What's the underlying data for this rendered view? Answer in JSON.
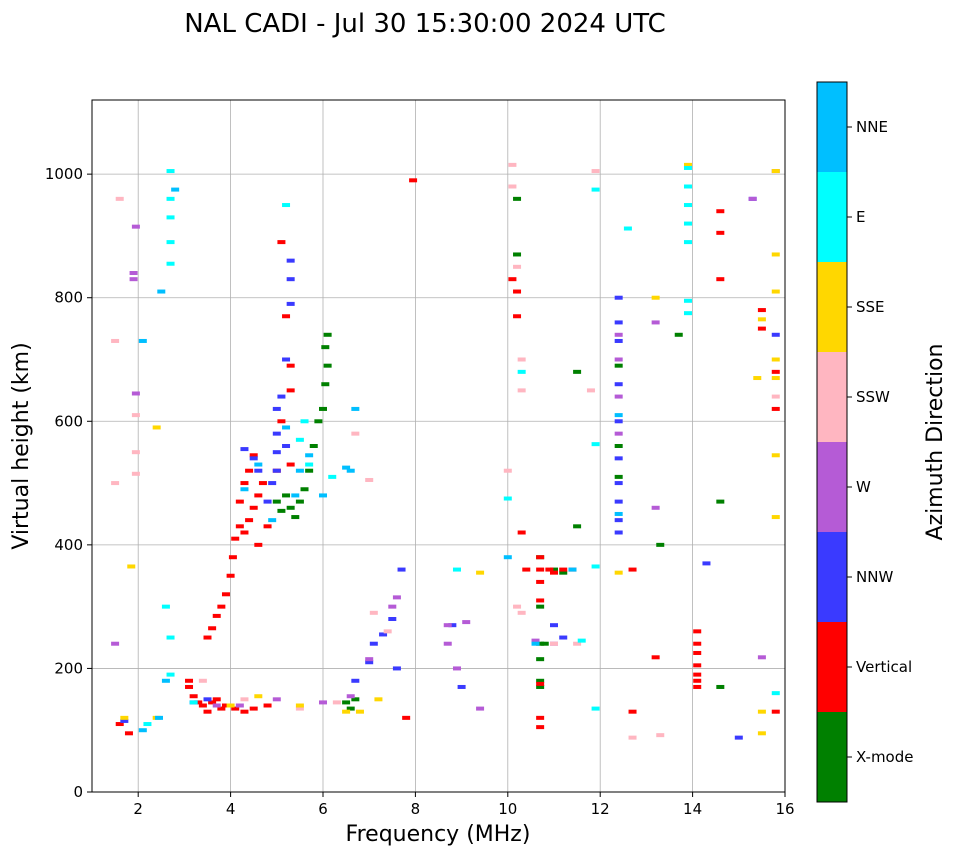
{
  "chart_data": {
    "type": "scatter",
    "title": "NAL CADI - Jul 30 15:30:00 2024 UTC",
    "xlabel": "Frequency (MHz)",
    "ylabel": "Virtual height (km)",
    "xlim": [
      1,
      16
    ],
    "ylim": [
      0,
      1120
    ],
    "xticks": [
      2,
      4,
      6,
      8,
      10,
      12,
      14,
      16
    ],
    "yticks": [
      0,
      200,
      400,
      600,
      800,
      1000
    ],
    "grid": true,
    "colorbar": {
      "title": "Azimuth Direction",
      "categories": [
        {
          "name": "X-mode",
          "color": "#008000"
        },
        {
          "name": "Vertical",
          "color": "#ff0000"
        },
        {
          "name": "NNW",
          "color": "#3a3aff"
        },
        {
          "name": "W",
          "color": "#b55bd6"
        },
        {
          "name": "SSW",
          "color": "#ffb6c1"
        },
        {
          "name": "SSE",
          "color": "#ffd700"
        },
        {
          "name": "E",
          "color": "#00ffff"
        },
        {
          "name": "NNE",
          "color": "#00bfff"
        }
      ]
    },
    "series": [
      {
        "name": "X-mode",
        "points": [
          [
            5.0,
            470
          ],
          [
            5.1,
            455
          ],
          [
            5.2,
            480
          ],
          [
            5.3,
            460
          ],
          [
            5.4,
            445
          ],
          [
            5.5,
            470
          ],
          [
            5.6,
            490
          ],
          [
            5.7,
            520
          ],
          [
            5.8,
            560
          ],
          [
            5.9,
            600
          ],
          [
            6.0,
            620
          ],
          [
            6.05,
            660
          ],
          [
            6.1,
            690
          ],
          [
            6.05,
            720
          ],
          [
            6.1,
            740
          ],
          [
            6.5,
            145
          ],
          [
            6.6,
            135
          ],
          [
            6.7,
            150
          ],
          [
            10.2,
            960
          ],
          [
            10.2,
            870
          ],
          [
            10.7,
            380
          ],
          [
            10.7,
            300
          ],
          [
            10.7,
            240
          ],
          [
            10.7,
            180
          ],
          [
            10.7,
            170
          ],
          [
            10.7,
            215
          ],
          [
            11.2,
            355
          ],
          [
            11.5,
            430
          ],
          [
            11.5,
            680
          ],
          [
            12.4,
            690
          ],
          [
            12.4,
            560
          ],
          [
            12.4,
            510
          ],
          [
            13.3,
            400
          ],
          [
            13.7,
            740
          ],
          [
            14.6,
            470
          ],
          [
            14.6,
            170
          ],
          [
            10.8,
            240
          ],
          [
            11.0,
            360
          ]
        ]
      },
      {
        "name": "Vertical",
        "points": [
          [
            1.6,
            110
          ],
          [
            1.8,
            95
          ],
          [
            3.1,
            180
          ],
          [
            3.1,
            170
          ],
          [
            3.2,
            155
          ],
          [
            3.3,
            145
          ],
          [
            3.4,
            140
          ],
          [
            3.5,
            130
          ],
          [
            3.6,
            145
          ],
          [
            3.7,
            150
          ],
          [
            3.8,
            135
          ],
          [
            3.9,
            140
          ],
          [
            4.1,
            135
          ],
          [
            4.3,
            130
          ],
          [
            4.5,
            135
          ],
          [
            4.8,
            140
          ],
          [
            3.5,
            250
          ],
          [
            3.6,
            265
          ],
          [
            3.7,
            285
          ],
          [
            3.8,
            300
          ],
          [
            3.9,
            320
          ],
          [
            4.0,
            350
          ],
          [
            4.05,
            380
          ],
          [
            4.1,
            410
          ],
          [
            4.2,
            430
          ],
          [
            4.3,
            420
          ],
          [
            4.4,
            440
          ],
          [
            4.5,
            460
          ],
          [
            4.6,
            480
          ],
          [
            4.7,
            500
          ],
          [
            4.4,
            520
          ],
          [
            4.5,
            545
          ],
          [
            4.2,
            470
          ],
          [
            4.3,
            500
          ],
          [
            4.6,
            400
          ],
          [
            4.8,
            430
          ],
          [
            5.0,
            520
          ],
          [
            5.1,
            600
          ],
          [
            5.1,
            890
          ],
          [
            5.2,
            770
          ],
          [
            5.3,
            690
          ],
          [
            5.3,
            650
          ],
          [
            5.3,
            530
          ],
          [
            7.8,
            120
          ],
          [
            7.95,
            990
          ],
          [
            10.1,
            830
          ],
          [
            10.2,
            810
          ],
          [
            10.2,
            770
          ],
          [
            10.3,
            420
          ],
          [
            10.4,
            360
          ],
          [
            10.7,
            380
          ],
          [
            10.7,
            360
          ],
          [
            10.7,
            340
          ],
          [
            10.7,
            310
          ],
          [
            10.7,
            175
          ],
          [
            10.7,
            120
          ],
          [
            10.7,
            105
          ],
          [
            10.9,
            360
          ],
          [
            11.0,
            355
          ],
          [
            11.2,
            360
          ],
          [
            11.4,
            360
          ],
          [
            12.7,
            360
          ],
          [
            12.7,
            130
          ],
          [
            13.2,
            218
          ],
          [
            14.1,
            260
          ],
          [
            14.1,
            240
          ],
          [
            14.1,
            225
          ],
          [
            14.1,
            205
          ],
          [
            14.1,
            190
          ],
          [
            14.1,
            180
          ],
          [
            14.1,
            170
          ],
          [
            14.6,
            940
          ],
          [
            14.6,
            905
          ],
          [
            14.6,
            830
          ],
          [
            15.5,
            780
          ],
          [
            15.5,
            750
          ],
          [
            15.8,
            680
          ],
          [
            15.8,
            620
          ],
          [
            15.8,
            130
          ]
        ]
      },
      {
        "name": "NNW",
        "points": [
          [
            1.7,
            115
          ],
          [
            3.2,
            145
          ],
          [
            3.5,
            150
          ],
          [
            4.3,
            555
          ],
          [
            4.5,
            540
          ],
          [
            4.6,
            520
          ],
          [
            4.8,
            470
          ],
          [
            4.9,
            500
          ],
          [
            5.0,
            550
          ],
          [
            5.0,
            580
          ],
          [
            5.0,
            620
          ],
          [
            5.1,
            640
          ],
          [
            5.2,
            700
          ],
          [
            5.0,
            520
          ],
          [
            5.2,
            560
          ],
          [
            5.3,
            860
          ],
          [
            5.3,
            830
          ],
          [
            5.3,
            790
          ],
          [
            6.7,
            180
          ],
          [
            7.0,
            210
          ],
          [
            7.1,
            240
          ],
          [
            7.3,
            255
          ],
          [
            7.5,
            280
          ],
          [
            7.6,
            200
          ],
          [
            7.7,
            360
          ],
          [
            8.8,
            270
          ],
          [
            9.0,
            170
          ],
          [
            11.0,
            270
          ],
          [
            11.2,
            250
          ],
          [
            12.4,
            800
          ],
          [
            12.4,
            760
          ],
          [
            12.4,
            730
          ],
          [
            12.4,
            660
          ],
          [
            12.4,
            600
          ],
          [
            12.4,
            540
          ],
          [
            12.4,
            500
          ],
          [
            12.4,
            470
          ],
          [
            12.4,
            440
          ],
          [
            12.4,
            420
          ],
          [
            14.3,
            370
          ],
          [
            15.0,
            88
          ],
          [
            15.3,
            960
          ],
          [
            15.8,
            740
          ]
        ]
      },
      {
        "name": "W",
        "points": [
          [
            1.5,
            240
          ],
          [
            1.9,
            830
          ],
          [
            1.9,
            840
          ],
          [
            1.95,
            645
          ],
          [
            1.95,
            915
          ],
          [
            3.7,
            140
          ],
          [
            4.2,
            140
          ],
          [
            5.0,
            150
          ],
          [
            6.0,
            145
          ],
          [
            6.6,
            155
          ],
          [
            7.0,
            215
          ],
          [
            7.5,
            300
          ],
          [
            7.6,
            315
          ],
          [
            8.7,
            240
          ],
          [
            8.7,
            270
          ],
          [
            8.9,
            200
          ],
          [
            9.1,
            275
          ],
          [
            9.4,
            135
          ],
          [
            10.6,
            245
          ],
          [
            11.0,
            240
          ],
          [
            12.4,
            740
          ],
          [
            12.4,
            700
          ],
          [
            12.4,
            640
          ],
          [
            12.4,
            580
          ],
          [
            13.2,
            460
          ],
          [
            13.2,
            760
          ],
          [
            15.3,
            960
          ],
          [
            15.5,
            218
          ],
          [
            15.8,
            1005
          ]
        ]
      },
      {
        "name": "SSW",
        "points": [
          [
            1.5,
            500
          ],
          [
            1.5,
            730
          ],
          [
            1.6,
            960
          ],
          [
            1.95,
            610
          ],
          [
            1.95,
            550
          ],
          [
            1.95,
            515
          ],
          [
            3.4,
            180
          ],
          [
            4.3,
            150
          ],
          [
            5.5,
            135
          ],
          [
            6.3,
            145
          ],
          [
            6.7,
            580
          ],
          [
            7.0,
            505
          ],
          [
            7.1,
            290
          ],
          [
            7.4,
            260
          ],
          [
            10.0,
            520
          ],
          [
            10.1,
            1015
          ],
          [
            10.1,
            980
          ],
          [
            10.2,
            850
          ],
          [
            10.3,
            700
          ],
          [
            10.3,
            650
          ],
          [
            10.2,
            300
          ],
          [
            10.3,
            290
          ],
          [
            11.0,
            240
          ],
          [
            11.5,
            240
          ],
          [
            11.8,
            650
          ],
          [
            11.9,
            1005
          ],
          [
            12.7,
            88
          ],
          [
            13.3,
            92
          ],
          [
            15.8,
            640
          ]
        ]
      },
      {
        "name": "SSE",
        "points": [
          [
            1.7,
            120
          ],
          [
            1.85,
            365
          ],
          [
            2.4,
            120
          ],
          [
            2.4,
            590
          ],
          [
            4.0,
            140
          ],
          [
            4.6,
            155
          ],
          [
            5.5,
            140
          ],
          [
            6.5,
            130
          ],
          [
            6.8,
            130
          ],
          [
            7.2,
            150
          ],
          [
            9.4,
            355
          ],
          [
            12.4,
            355
          ],
          [
            13.2,
            800
          ],
          [
            13.9,
            1015
          ],
          [
            15.4,
            670
          ],
          [
            15.5,
            95
          ],
          [
            15.5,
            130
          ],
          [
            15.5,
            765
          ],
          [
            15.8,
            1005
          ],
          [
            15.8,
            870
          ],
          [
            15.8,
            810
          ],
          [
            15.8,
            700
          ],
          [
            15.8,
            670
          ],
          [
            15.8,
            545
          ],
          [
            15.8,
            445
          ]
        ]
      },
      {
        "name": "E",
        "points": [
          [
            2.2,
            110
          ],
          [
            2.6,
            300
          ],
          [
            2.7,
            1005
          ],
          [
            2.7,
            960
          ],
          [
            2.7,
            930
          ],
          [
            2.7,
            890
          ],
          [
            2.7,
            855
          ],
          [
            2.7,
            250
          ],
          [
            2.7,
            190
          ],
          [
            3.2,
            145
          ],
          [
            5.2,
            950
          ],
          [
            5.5,
            570
          ],
          [
            5.6,
            600
          ],
          [
            5.7,
            530
          ],
          [
            6.2,
            510
          ],
          [
            8.9,
            360
          ],
          [
            10.0,
            475
          ],
          [
            10.3,
            680
          ],
          [
            11.9,
            975
          ],
          [
            11.9,
            563
          ],
          [
            11.9,
            365
          ],
          [
            12.6,
            912
          ],
          [
            13.9,
            1010
          ],
          [
            13.9,
            980
          ],
          [
            13.9,
            950
          ],
          [
            13.9,
            920
          ],
          [
            13.9,
            890
          ],
          [
            13.9,
            795
          ],
          [
            13.9,
            775
          ],
          [
            11.9,
            135
          ],
          [
            11.6,
            245
          ],
          [
            15.8,
            160
          ]
        ]
      },
      {
        "name": "NNE",
        "points": [
          [
            2.1,
            730
          ],
          [
            2.1,
            100
          ],
          [
            2.45,
            120
          ],
          [
            2.5,
            810
          ],
          [
            2.6,
            180
          ],
          [
            2.8,
            975
          ],
          [
            4.3,
            490
          ],
          [
            4.6,
            530
          ],
          [
            4.9,
            440
          ],
          [
            5.2,
            590
          ],
          [
            5.4,
            480
          ],
          [
            5.5,
            520
          ],
          [
            5.7,
            545
          ],
          [
            6.0,
            480
          ],
          [
            6.5,
            525
          ],
          [
            6.6,
            520
          ],
          [
            6.7,
            620
          ],
          [
            10.0,
            380
          ],
          [
            10.6,
            240
          ],
          [
            11.4,
            360
          ],
          [
            12.4,
            610
          ],
          [
            12.4,
            450
          ]
        ]
      }
    ]
  }
}
